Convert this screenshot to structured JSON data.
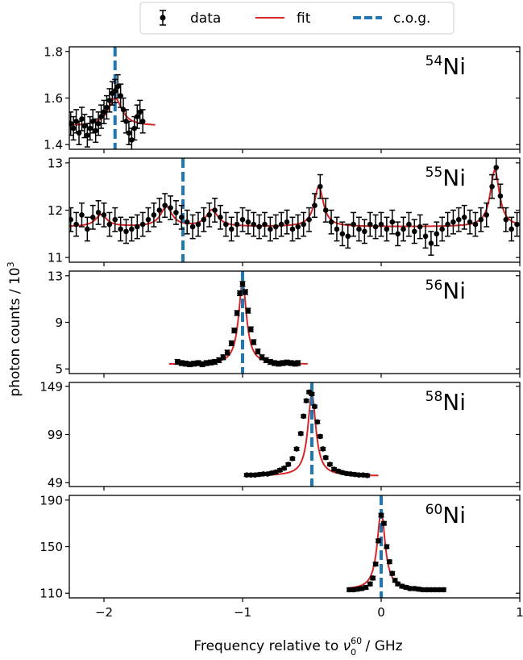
{
  "chart_data": {
    "type": "scatter",
    "xlabel": "Frequency relative to",
    "xlabel_symbol": "ν",
    "xlabel_sub": "0",
    "xlabel_sup": "60",
    "xlabel_unit": " / GHz",
    "ylabel": "photon counts / 10",
    "ylabel_sup": "3",
    "xlim": [
      -2.25,
      1.0
    ],
    "xticks": [
      -2,
      -1,
      0,
      1
    ],
    "xtick_labels": [
      "−2",
      "−1",
      "0",
      "1"
    ],
    "legend": {
      "placement": "top-center",
      "entries": [
        {
          "label": "data",
          "kind": "errorbar",
          "color": "#000000"
        },
        {
          "label": "fit",
          "kind": "line",
          "color": "#d62728"
        },
        {
          "label": "c.o.g.",
          "kind": "dashed",
          "color": "#1f77b4"
        }
      ]
    },
    "panels": [
      {
        "isotope_mass": "54",
        "isotope_symbol": "Ni",
        "ylim": [
          1.38,
          1.82
        ],
        "yticks": [
          1.4,
          1.6,
          1.8
        ],
        "ytick_labels": [
          "1.4",
          "1.6",
          "1.8"
        ],
        "cog": -1.92,
        "x_range": [
          -2.25,
          -1.72
        ],
        "fit_peaks": [
          {
            "x0": -1.92,
            "amp": 0.12,
            "w": 0.06
          }
        ],
        "fit_baseline": 1.48,
        "fit_range": [
          -2.25,
          -1.63
        ],
        "err": 0.05,
        "points": [
          [
            -2.24,
            1.49
          ],
          [
            -2.22,
            1.47
          ],
          [
            -2.2,
            1.5
          ],
          [
            -2.18,
            1.45
          ],
          [
            -2.16,
            1.51
          ],
          [
            -2.14,
            1.48
          ],
          [
            -2.12,
            1.44
          ],
          [
            -2.1,
            1.47
          ],
          [
            -2.08,
            1.5
          ],
          [
            -2.06,
            1.46
          ],
          [
            -2.04,
            1.49
          ],
          [
            -2.02,
            1.52
          ],
          [
            -2.0,
            1.54
          ],
          [
            -1.98,
            1.56
          ],
          [
            -1.96,
            1.59
          ],
          [
            -1.94,
            1.62
          ],
          [
            -1.92,
            1.63
          ],
          [
            -1.9,
            1.65
          ],
          [
            -1.88,
            1.61
          ],
          [
            -1.86,
            1.55
          ],
          [
            -1.84,
            1.5
          ],
          [
            -1.82,
            1.45
          ],
          [
            -1.8,
            1.42
          ],
          [
            -1.78,
            1.47
          ],
          [
            -1.76,
            1.52
          ],
          [
            -1.74,
            1.54
          ],
          [
            -1.72,
            1.5
          ]
        ]
      },
      {
        "isotope_mass": "55",
        "isotope_symbol": "Ni",
        "ylim": [
          10.9,
          13.1
        ],
        "yticks": [
          11,
          12,
          13
        ],
        "ytick_labels": [
          "11",
          "12",
          "13"
        ],
        "cog": -1.43,
        "x_range": [
          -2.25,
          0.98
        ],
        "fit_peaks": [
          {
            "x0": -2.02,
            "amp": 0.25,
            "w": 0.05
          },
          {
            "x0": -1.55,
            "amp": 0.42,
            "w": 0.05
          },
          {
            "x0": -1.22,
            "amp": 0.35,
            "w": 0.05
          },
          {
            "x0": -0.45,
            "amp": 0.85,
            "w": 0.04
          },
          {
            "x0": 0.82,
            "amp": 1.2,
            "w": 0.04
          }
        ],
        "fit_baseline": 11.65,
        "fit_range": [
          -2.25,
          1.0
        ],
        "err": 0.25,
        "points": [
          [
            -2.24,
            11.8
          ],
          [
            -2.2,
            11.7
          ],
          [
            -2.16,
            11.9
          ],
          [
            -2.12,
            11.6
          ],
          [
            -2.08,
            11.85
          ],
          [
            -2.04,
            11.95
          ],
          [
            -2.0,
            11.9
          ],
          [
            -1.96,
            11.7
          ],
          [
            -1.92,
            11.8
          ],
          [
            -1.88,
            11.6
          ],
          [
            -1.84,
            11.55
          ],
          [
            -1.8,
            11.6
          ],
          [
            -1.76,
            11.65
          ],
          [
            -1.72,
            11.7
          ],
          [
            -1.68,
            11.8
          ],
          [
            -1.64,
            11.9
          ],
          [
            -1.6,
            12.0
          ],
          [
            -1.56,
            12.1
          ],
          [
            -1.52,
            12.05
          ],
          [
            -1.48,
            11.95
          ],
          [
            -1.44,
            11.85
          ],
          [
            -1.4,
            11.75
          ],
          [
            -1.36,
            11.65
          ],
          [
            -1.32,
            11.7
          ],
          [
            -1.28,
            11.8
          ],
          [
            -1.24,
            11.9
          ],
          [
            -1.2,
            12.0
          ],
          [
            -1.16,
            11.85
          ],
          [
            -1.12,
            11.7
          ],
          [
            -1.08,
            11.6
          ],
          [
            -1.04,
            11.7
          ],
          [
            -1.0,
            11.8
          ],
          [
            -0.96,
            11.75
          ],
          [
            -0.92,
            11.7
          ],
          [
            -0.88,
            11.65
          ],
          [
            -0.84,
            11.7
          ],
          [
            -0.8,
            11.6
          ],
          [
            -0.76,
            11.65
          ],
          [
            -0.72,
            11.7
          ],
          [
            -0.68,
            11.75
          ],
          [
            -0.64,
            11.6
          ],
          [
            -0.6,
            11.65
          ],
          [
            -0.56,
            11.7
          ],
          [
            -0.52,
            11.8
          ],
          [
            -0.48,
            12.1
          ],
          [
            -0.44,
            12.5
          ],
          [
            -0.4,
            12.0
          ],
          [
            -0.36,
            11.75
          ],
          [
            -0.32,
            11.6
          ],
          [
            -0.28,
            11.5
          ],
          [
            -0.24,
            11.45
          ],
          [
            -0.2,
            11.7
          ],
          [
            -0.16,
            11.6
          ],
          [
            -0.12,
            11.55
          ],
          [
            -0.08,
            11.7
          ],
          [
            -0.04,
            11.65
          ],
          [
            0.0,
            11.7
          ],
          [
            0.04,
            11.6
          ],
          [
            0.08,
            11.75
          ],
          [
            0.12,
            11.5
          ],
          [
            0.16,
            11.6
          ],
          [
            0.2,
            11.7
          ],
          [
            0.24,
            11.55
          ],
          [
            0.28,
            11.65
          ],
          [
            0.32,
            11.45
          ],
          [
            0.36,
            11.3
          ],
          [
            0.4,
            11.5
          ],
          [
            0.44,
            11.6
          ],
          [
            0.48,
            11.7
          ],
          [
            0.52,
            11.75
          ],
          [
            0.56,
            11.8
          ],
          [
            0.6,
            11.85
          ],
          [
            0.64,
            11.75
          ],
          [
            0.68,
            11.7
          ],
          [
            0.72,
            11.8
          ],
          [
            0.76,
            11.9
          ],
          [
            0.8,
            12.5
          ],
          [
            0.83,
            12.9
          ],
          [
            0.86,
            12.3
          ],
          [
            0.9,
            11.8
          ],
          [
            0.94,
            11.6
          ],
          [
            0.98,
            11.7
          ]
        ]
      },
      {
        "isotope_mass": "56",
        "isotope_symbol": "Ni",
        "ylim": [
          4.6,
          13.4
        ],
        "yticks": [
          5,
          9,
          13
        ],
        "ytick_labels": [
          "5",
          "9",
          "13"
        ],
        "cog": -1.0,
        "x_range": [
          -1.47,
          -0.6
        ],
        "fit_peaks": [
          {
            "x0": -1.0,
            "amp": 7.0,
            "w": 0.035
          }
        ],
        "fit_baseline": 5.4,
        "fit_range": [
          -1.53,
          -0.53
        ],
        "err": 0.2,
        "points": [
          [
            -1.47,
            5.6
          ],
          [
            -1.44,
            5.5
          ],
          [
            -1.41,
            5.45
          ],
          [
            -1.38,
            5.4
          ],
          [
            -1.35,
            5.45
          ],
          [
            -1.32,
            5.5
          ],
          [
            -1.29,
            5.4
          ],
          [
            -1.26,
            5.5
          ],
          [
            -1.23,
            5.55
          ],
          [
            -1.2,
            5.6
          ],
          [
            -1.17,
            5.75
          ],
          [
            -1.14,
            6.0
          ],
          [
            -1.11,
            6.4
          ],
          [
            -1.08,
            7.2
          ],
          [
            -1.06,
            8.3
          ],
          [
            -1.04,
            9.8
          ],
          [
            -1.02,
            11.5
          ],
          [
            -1.0,
            12.3
          ],
          [
            -0.98,
            11.6
          ],
          [
            -0.96,
            10.0
          ],
          [
            -0.94,
            8.4
          ],
          [
            -0.92,
            7.3
          ],
          [
            -0.89,
            6.5
          ],
          [
            -0.86,
            6.0
          ],
          [
            -0.83,
            5.75
          ],
          [
            -0.8,
            5.6
          ],
          [
            -0.77,
            5.5
          ],
          [
            -0.74,
            5.45
          ],
          [
            -0.71,
            5.5
          ],
          [
            -0.68,
            5.55
          ],
          [
            -0.65,
            5.5
          ],
          [
            -0.62,
            5.45
          ],
          [
            -0.6,
            5.5
          ]
        ]
      },
      {
        "isotope_mass": "58",
        "isotope_symbol": "Ni",
        "ylim": [
          45,
          153
        ],
        "yticks": [
          49,
          99,
          149
        ],
        "ytick_labels": [
          "49",
          "99",
          "149"
        ],
        "cog": -0.5,
        "x_range": [
          -0.97,
          -0.1
        ],
        "fit_peaks": [
          {
            "x0": -0.5,
            "amp": 85,
            "w": 0.035
          }
        ],
        "fit_baseline": 56,
        "fit_range": [
          -0.97,
          -0.02
        ],
        "err": 1.5,
        "points": [
          [
            -0.97,
            57
          ],
          [
            -0.94,
            57
          ],
          [
            -0.91,
            57
          ],
          [
            -0.88,
            57.5
          ],
          [
            -0.85,
            58
          ],
          [
            -0.82,
            58
          ],
          [
            -0.79,
            59
          ],
          [
            -0.76,
            60
          ],
          [
            -0.73,
            62
          ],
          [
            -0.7,
            64
          ],
          [
            -0.67,
            68
          ],
          [
            -0.64,
            74
          ],
          [
            -0.61,
            84
          ],
          [
            -0.58,
            100
          ],
          [
            -0.56,
            118
          ],
          [
            -0.54,
            134
          ],
          [
            -0.52,
            143
          ],
          [
            -0.5,
            141
          ],
          [
            -0.48,
            128
          ],
          [
            -0.46,
            112
          ],
          [
            -0.44,
            97
          ],
          [
            -0.42,
            84
          ],
          [
            -0.4,
            75
          ],
          [
            -0.37,
            68
          ],
          [
            -0.34,
            63
          ],
          [
            -0.31,
            61
          ],
          [
            -0.28,
            59.5
          ],
          [
            -0.25,
            58.5
          ],
          [
            -0.22,
            58
          ],
          [
            -0.19,
            57.5
          ],
          [
            -0.16,
            57
          ],
          [
            -0.13,
            57
          ],
          [
            -0.1,
            56.5
          ]
        ]
      },
      {
        "isotope_mass": "60",
        "isotope_symbol": "Ni",
        "ylim": [
          106,
          194
        ],
        "yticks": [
          110,
          150,
          190
        ],
        "ytick_labels": [
          "110",
          "150",
          "190"
        ],
        "cog": 0.0,
        "x_range": [
          -0.23,
          0.45
        ],
        "fit_peaks": [
          {
            "x0": 0.0,
            "amp": 67,
            "w": 0.035
          }
        ],
        "fit_baseline": 113,
        "fit_range": [
          -0.23,
          0.47
        ],
        "err": 1.5,
        "points": [
          [
            -0.23,
            113
          ],
          [
            -0.2,
            113
          ],
          [
            -0.17,
            113.5
          ],
          [
            -0.14,
            114
          ],
          [
            -0.11,
            115
          ],
          [
            -0.08,
            118
          ],
          [
            -0.06,
            123
          ],
          [
            -0.04,
            135
          ],
          [
            -0.02,
            155
          ],
          [
            0.0,
            177
          ],
          [
            0.02,
            170
          ],
          [
            0.04,
            150
          ],
          [
            0.06,
            137
          ],
          [
            0.08,
            127
          ],
          [
            0.1,
            121
          ],
          [
            0.12,
            118
          ],
          [
            0.15,
            116
          ],
          [
            0.18,
            115
          ],
          [
            0.21,
            114
          ],
          [
            0.24,
            114
          ],
          [
            0.27,
            113.5
          ],
          [
            0.3,
            113
          ],
          [
            0.33,
            113
          ],
          [
            0.36,
            113
          ],
          [
            0.39,
            113
          ],
          [
            0.42,
            113
          ],
          [
            0.45,
            113
          ]
        ]
      }
    ]
  }
}
